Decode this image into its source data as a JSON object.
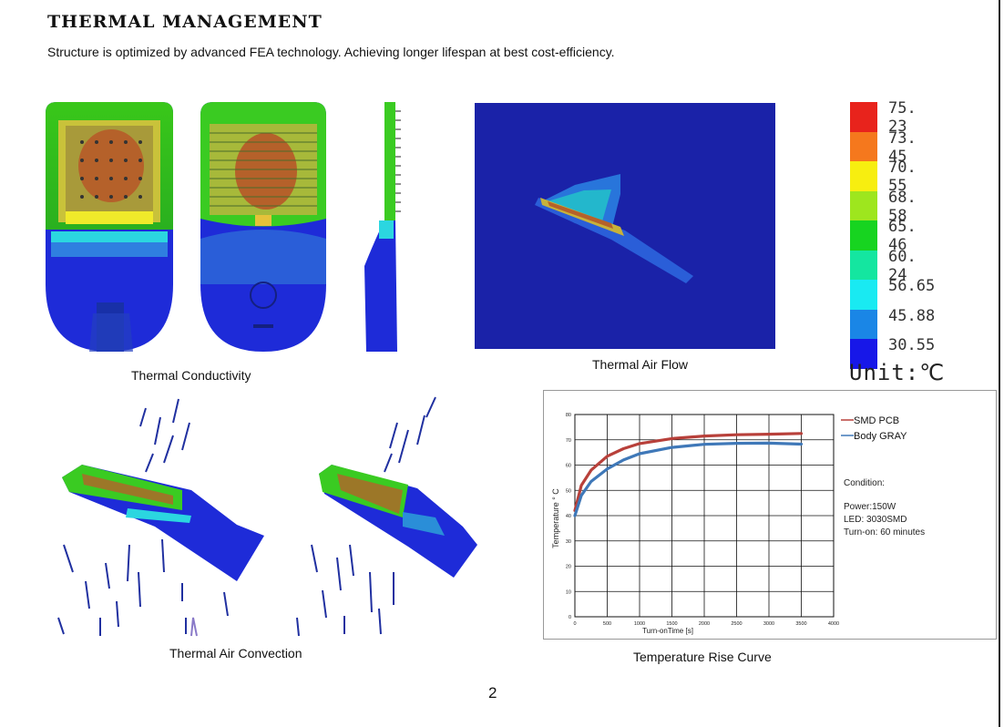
{
  "header": {
    "title": "THERMAL MANAGEMENT",
    "subtitle": "Structure is optimized by advanced FEA  technology. Achieving longer lifespan at best cost-efficiency."
  },
  "captions": {
    "conductivity": "Thermal Conductivity",
    "air_flow": "Thermal Air Flow",
    "convection": "Thermal Air Convection",
    "rise_curve": "Temperature Rise Curve"
  },
  "legend": {
    "unit": "Unit:℃",
    "entries": [
      {
        "value": "75. 23",
        "color": "#e8231c"
      },
      {
        "value": "73. 45",
        "color": "#f5781d"
      },
      {
        "value": "70. 55",
        "color": "#f7ee10"
      },
      {
        "value": "68. 58",
        "color": "#9ee61e"
      },
      {
        "value": "65. 46",
        "color": "#17d420"
      },
      {
        "value": "60. 24",
        "color": "#14e6a0"
      },
      {
        "value": "56.65",
        "color": "#19eaf2"
      },
      {
        "value": "45.88",
        "color": "#1a86e6"
      },
      {
        "value": "30.55",
        "color": "#1717e8"
      }
    ]
  },
  "chart_data": {
    "type": "line",
    "xlabel": "Turn-onTime [s]",
    "ylabel": "Temperature ° C",
    "xlim": [
      0,
      4000
    ],
    "ylim": [
      0,
      80
    ],
    "xticks": [
      "0",
      "500",
      "1000",
      "1500",
      "2000",
      "2500",
      "3000",
      "3500",
      "4000"
    ],
    "yticks": [
      "0",
      "10",
      "20",
      "30",
      "40",
      "50",
      "60",
      "70",
      "80"
    ],
    "series": [
      {
        "name": "SMD PCB",
        "color": "#b8403a",
        "x": [
          0,
          100,
          250,
          500,
          750,
          1000,
          1500,
          2000,
          2500,
          3000,
          3500
        ],
        "y": [
          42,
          52,
          58,
          63.5,
          66.5,
          68.5,
          70.5,
          71.5,
          72,
          72.2,
          72.5
        ]
      },
      {
        "name": "Body GRAY",
        "color": "#3f78b8",
        "x": [
          0,
          100,
          250,
          500,
          750,
          1000,
          1500,
          2000,
          2500,
          3000,
          3500
        ],
        "y": [
          40,
          48,
          53.5,
          58.5,
          62,
          64.5,
          67,
          68.2,
          68.6,
          68.7,
          68.3
        ]
      }
    ]
  },
  "condition": {
    "heading": "Condition:",
    "power": "Power:150W",
    "led": "LED: 3030SMD",
    "turn_on": "Turn-on: 60 minutes"
  },
  "page_number": "2"
}
